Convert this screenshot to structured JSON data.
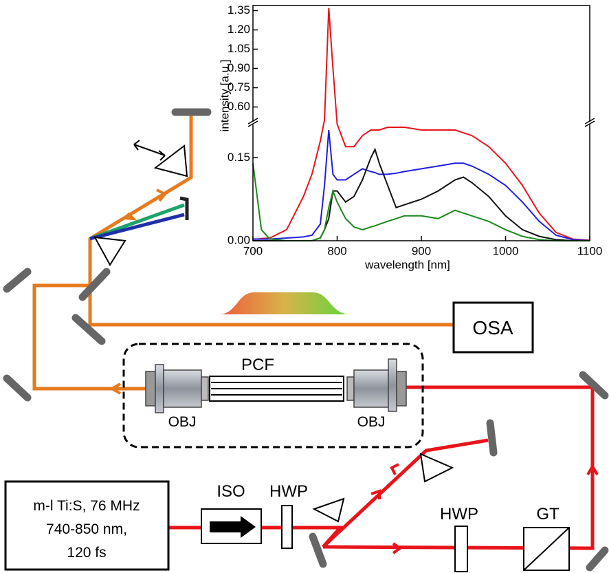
{
  "chart_data": {
    "type": "line",
    "x_label": "wavelength [nm]",
    "y_label": "intensity [a.u.]",
    "x": [
      700,
      705,
      710,
      720,
      740,
      750,
      760,
      770,
      780,
      785,
      790,
      795,
      800,
      810,
      820,
      830,
      840,
      845,
      850,
      860,
      870,
      880,
      900,
      920,
      940,
      950,
      960,
      980,
      1000,
      1020,
      1040,
      1060,
      1080,
      1100
    ],
    "series": [
      {
        "color": "#e8141a",
        "values": [
          0.003,
          0.003,
          0.004,
          0.005,
          0.02,
          0.05,
          0.08,
          0.12,
          0.18,
          0.5,
          1.37,
          0.9,
          0.25,
          0.17,
          0.17,
          0.19,
          0.2,
          0.2,
          0.2,
          0.205,
          0.205,
          0.205,
          0.2,
          0.2,
          0.2,
          0.195,
          0.19,
          0.17,
          0.14,
          0.1,
          0.05,
          0.015,
          0.003,
          0.001
        ]
      },
      {
        "color": "#1f1fe0",
        "values": [
          0.003,
          0.003,
          0.003,
          0.003,
          0.005,
          0.006,
          0.007,
          0.01,
          0.03,
          0.1,
          0.2,
          0.12,
          0.11,
          0.11,
          0.12,
          0.13,
          0.125,
          0.123,
          0.12,
          0.12,
          0.122,
          0.125,
          0.13,
          0.135,
          0.14,
          0.14,
          0.135,
          0.12,
          0.1,
          0.07,
          0.035,
          0.01,
          0.002,
          0
        ]
      },
      {
        "color": "#111111",
        "values": [
          0,
          0,
          0,
          0,
          0,
          0,
          0,
          0,
          0.005,
          0.02,
          0.04,
          0.09,
          0.09,
          0.07,
          0.08,
          0.11,
          0.15,
          0.165,
          0.14,
          0.1,
          0.06,
          0.065,
          0.075,
          0.09,
          0.11,
          0.115,
          0.105,
          0.08,
          0.045,
          0.02,
          0.008,
          0.002,
          0,
          0
        ]
      },
      {
        "color": "#1a8a1a",
        "values": [
          0.14,
          0.08,
          0.02,
          0.003,
          0,
          0,
          0,
          0,
          0.005,
          0.02,
          0.06,
          0.09,
          0.07,
          0.04,
          0.025,
          0.02,
          0.025,
          0.027,
          0.03,
          0.035,
          0.04,
          0.045,
          0.045,
          0.04,
          0.055,
          0.05,
          0.045,
          0.035,
          0.02,
          0.008,
          0.002,
          0,
          0,
          0
        ]
      }
    ],
    "xlim": [
      700,
      1100
    ],
    "xticks": [
      700,
      800,
      900,
      1000,
      1100
    ],
    "ylim": [
      0,
      1.39
    ],
    "axis_break": [
      0.21,
      0.485
    ],
    "yticks": [
      {
        "value": 0,
        "label": "0.00"
      },
      0.15,
      {
        "value": 0.6,
        "label": "0.60"
      },
      0.75,
      {
        "value": 0.9,
        "label": "0.90"
      },
      1.05,
      {
        "value": 1.2,
        "label": "1.20"
      },
      1.35
    ]
  },
  "labels": {
    "osa": "OSA",
    "pcf": "PCF",
    "obj_left": "OBJ",
    "obj_right": "OBJ",
    "iso": "ISO",
    "hwp_1": "HWP",
    "hwp_2": "HWP",
    "gt": "GT"
  },
  "laser": {
    "lines": [
      "m-l Ti:S, 76 MHz",
      "740-850 nm,",
      "120 fs"
    ]
  }
}
